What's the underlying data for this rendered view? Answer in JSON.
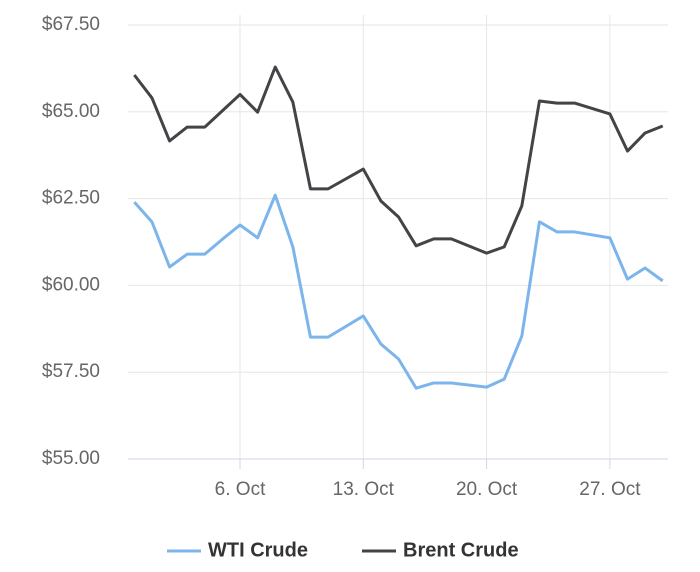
{
  "chart_data": {
    "type": "line",
    "x": [
      0,
      1,
      2,
      3,
      4,
      5,
      6,
      7,
      8,
      9,
      10,
      11,
      13,
      14,
      15,
      16,
      17,
      18,
      20,
      21,
      22,
      23,
      24,
      25,
      27,
      28,
      29,
      30
    ],
    "series": [
      {
        "name": "WTI Crude",
        "color": "#7cb5ec",
        "values": [
          62.4,
          61.83,
          60.53,
          60.9,
          60.9,
          61.33,
          61.74,
          61.37,
          62.6,
          61.11,
          58.51,
          58.51,
          59.12,
          58.31,
          57.88,
          57.04,
          57.19,
          57.19,
          57.07,
          57.3,
          58.54,
          61.83,
          61.54,
          61.54,
          61.37,
          60.18,
          60.5,
          60.13
        ]
      },
      {
        "name": "Brent Crude",
        "color": "#434348",
        "values": [
          66.06,
          65.4,
          64.16,
          64.56,
          64.56,
          65.03,
          65.5,
          64.99,
          66.29,
          65.28,
          62.78,
          62.78,
          63.35,
          62.43,
          61.97,
          61.14,
          61.34,
          61.34,
          60.93,
          61.11,
          62.29,
          65.31,
          65.25,
          65.25,
          64.94,
          63.87,
          64.39,
          64.59
        ]
      }
    ],
    "xlim": [
      -0.36,
      30.3
    ],
    "xticks": [
      {
        "value": 6,
        "label": "6. Oct"
      },
      {
        "value": 13,
        "label": "13. Oct"
      },
      {
        "value": 20,
        "label": "20. Oct"
      },
      {
        "value": 27,
        "label": "27. Oct"
      }
    ],
    "ylim": [
      55,
      67.5
    ],
    "yticks": [
      {
        "value": 55,
        "label": "$55.00"
      },
      {
        "value": 57.5,
        "label": "$57.50"
      },
      {
        "value": 60,
        "label": "$60.00"
      },
      {
        "value": 62.5,
        "label": "$62.50"
      },
      {
        "value": 65,
        "label": "$65.00"
      },
      {
        "value": 67.5,
        "label": "$67.50"
      }
    ],
    "grid": true,
    "legend": "bottom"
  }
}
